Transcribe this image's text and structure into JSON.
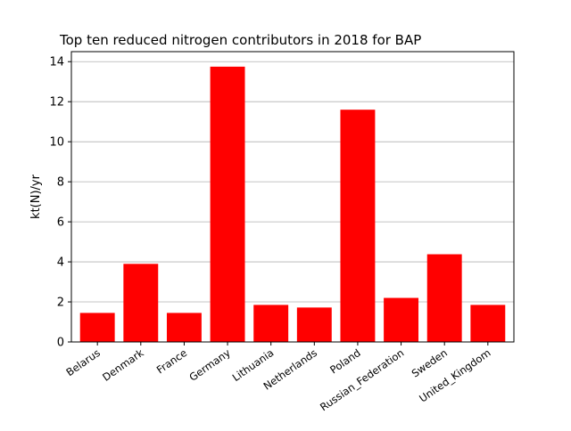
{
  "chart_data": {
    "type": "bar",
    "title": "Top ten reduced nitrogen contributors in 2018 for  BAP",
    "xlabel": "",
    "ylabel": "kt(N)/yr",
    "categories": [
      "Belarus",
      "Denmark",
      "France",
      "Germany",
      "Lithuania",
      "Netherlands",
      "Poland",
      "Russian_Federation",
      "Sweden",
      "United_Kingdom"
    ],
    "values": [
      1.45,
      3.9,
      1.45,
      13.75,
      1.85,
      1.72,
      11.6,
      2.2,
      4.38,
      1.85
    ],
    "ylim": [
      0,
      14.5
    ],
    "yticks": [
      0,
      2,
      4,
      6,
      8,
      10,
      12,
      14
    ],
    "grid": "horizontal",
    "legend": "none",
    "bar_color": "#ff0000",
    "grid_color": "#b0b0b0",
    "axis_color": "#000000"
  }
}
